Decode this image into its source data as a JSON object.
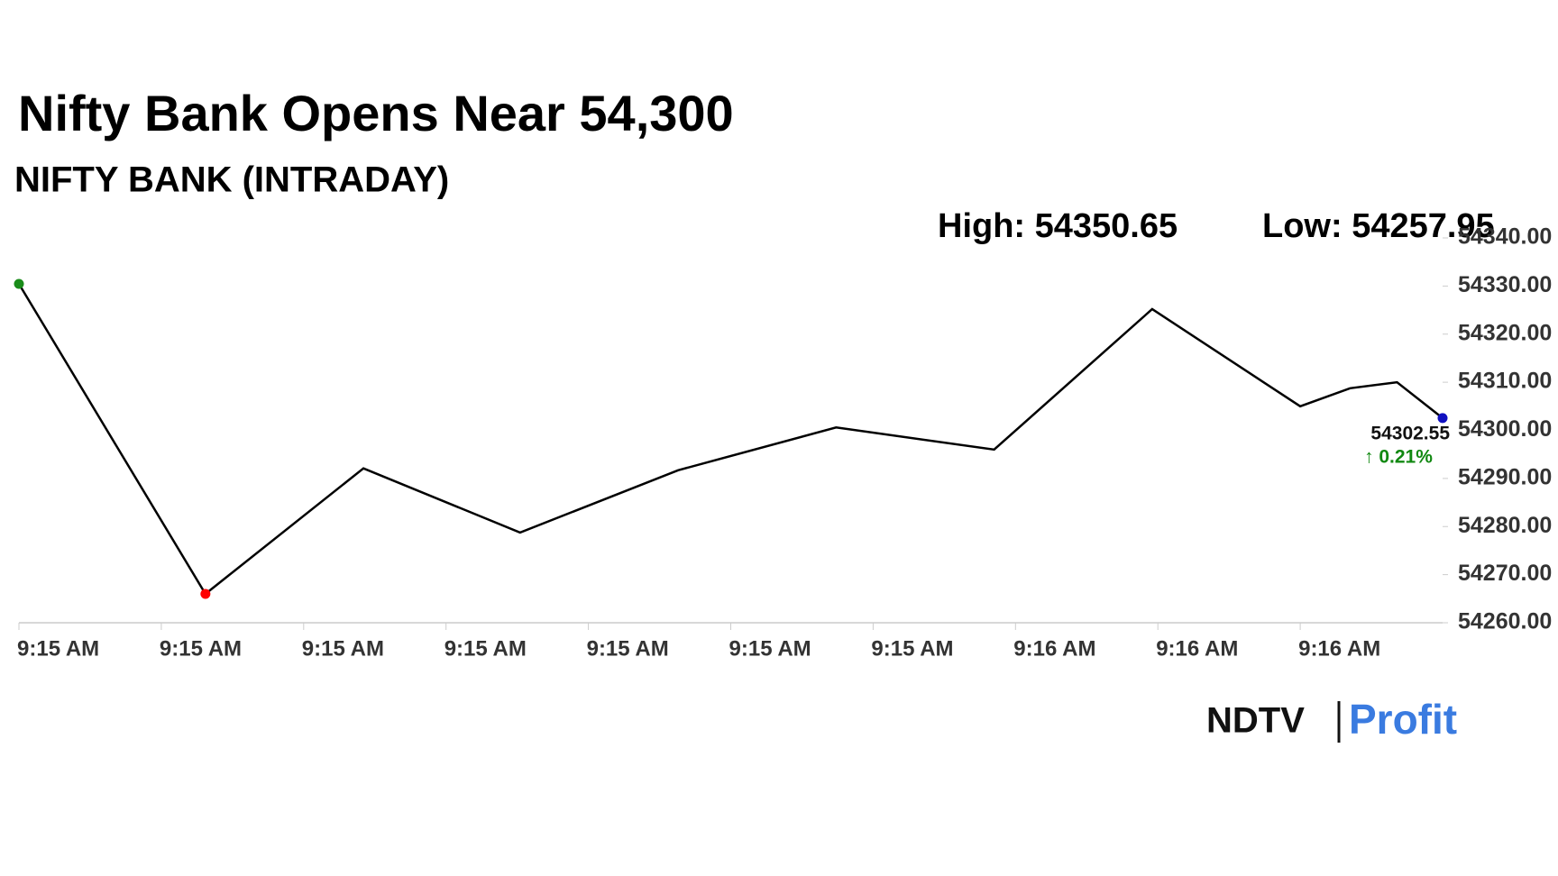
{
  "chart_data": {
    "type": "line",
    "title": "Nifty Bank Opens Near 54,300",
    "subtitle": "NIFTY BANK (INTRADAY)",
    "high_label": "High: 54350.65",
    "low_label": "Low: 54257.95",
    "change": "↑ 0.21%",
    "logo": {
      "left": "NDTV",
      "right": "Profit"
    },
    "x": [
      0,
      1.31,
      2.42,
      3.52,
      4.63,
      5.74,
      6.85,
      7.96,
      9.0,
      9.35,
      9.68,
      10
    ],
    "series": [
      {
        "color": "#000000",
        "values": [
          54330.45,
          54266.0,
          54292.1,
          54278.75,
          54291.7,
          54300.6,
          54296.0,
          54325.2,
          54305.0,
          54308.75,
          54310.0,
          54302.55
        ]
      }
    ],
    "xlim": [
      0,
      10
    ],
    "xticks": [
      {
        "value": 0,
        "label": "9:15 AM"
      },
      {
        "value": 1,
        "label": "9:15 AM"
      },
      {
        "value": 2,
        "label": "9:15 AM"
      },
      {
        "value": 3,
        "label": "9:15 AM"
      },
      {
        "value": 4,
        "label": "9:15 AM"
      },
      {
        "value": 5,
        "label": "9:15 AM"
      },
      {
        "value": 6,
        "label": "9:15 AM"
      },
      {
        "value": 7,
        "label": "9:16 AM"
      },
      {
        "value": 8,
        "label": "9:16 AM"
      },
      {
        "value": 9,
        "label": "9:16 AM"
      }
    ],
    "ylim": [
      54260,
      54340
    ],
    "yticks": [
      {
        "value": 54260,
        "label": "54260.00"
      },
      {
        "value": 54270,
        "label": "54270.00"
      },
      {
        "value": 54280,
        "label": "54280.00"
      },
      {
        "value": 54290,
        "label": "54290.00"
      },
      {
        "value": 54300,
        "label": "54300.00"
      },
      {
        "value": 54310,
        "label": "54310.00"
      },
      {
        "value": 54320,
        "label": "54320.00"
      },
      {
        "value": 54330,
        "label": "54330.00"
      },
      {
        "value": 54340,
        "label": "54340.00"
      }
    ],
    "marker_colors": {
      "first": "#1a8c1a",
      "low": "#ff0000",
      "last": "#1010c0"
    },
    "change_color": "#118811"
  }
}
